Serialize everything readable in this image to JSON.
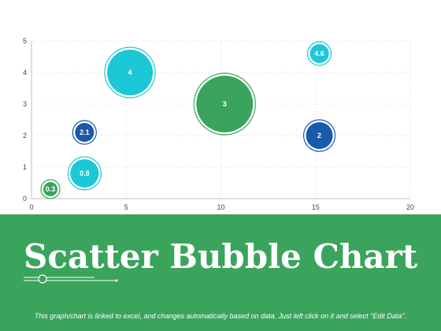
{
  "chart_data": {
    "type": "bubble",
    "xlim": [
      0,
      20
    ],
    "ylim": [
      0,
      5
    ],
    "x_ticks": [
      0,
      5,
      10,
      15,
      20
    ],
    "y_ticks": [
      0,
      1,
      2,
      3,
      4,
      5
    ],
    "grid": true,
    "points": [
      {
        "x": 1,
        "y": 0.3,
        "size": 0.3,
        "label": "0.3",
        "color": "#3aa45c"
      },
      {
        "x": 2.8,
        "y": 0.8,
        "size": 0.8,
        "label": "0.8",
        "color": "#1cc7d6"
      },
      {
        "x": 2.8,
        "y": 2.1,
        "size": 2.1,
        "label": "2.1",
        "color": "#1a5aa8"
      },
      {
        "x": 5.2,
        "y": 4,
        "size": 4,
        "label": "4",
        "color": "#1cc7d6"
      },
      {
        "x": 10.2,
        "y": 3,
        "size": 3,
        "label": "3",
        "color": "#3aa45c"
      },
      {
        "x": 15.2,
        "y": 2,
        "size": 2,
        "label": "2",
        "color": "#1a5aa8"
      },
      {
        "x": 15.2,
        "y": 4.6,
        "size": 4.6,
        "label": "4.6",
        "color": "#1cc7d6"
      }
    ]
  },
  "footer": {
    "title": "Scatter Bubble Chart",
    "note": "This graph/chart is linked to excel, and changes automatically based on data. Just left click on it and select \"Edit Data\".",
    "background": "#3aa45c"
  }
}
